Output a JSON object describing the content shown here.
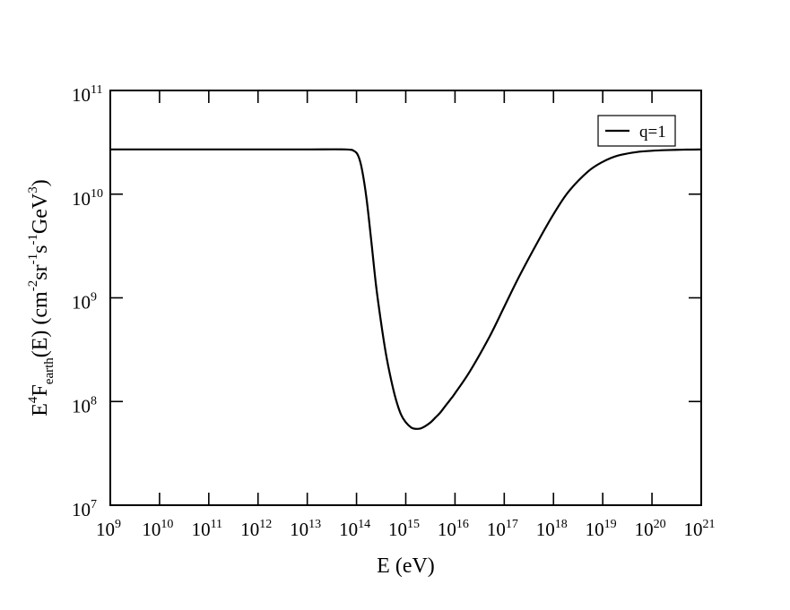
{
  "chart_data": {
    "type": "line",
    "xlabel": "E (eV)",
    "ylabel": {
      "parts": [
        "E",
        "4",
        "F",
        "earth",
        "(E) (cm",
        "-2",
        "sr",
        "-1",
        "s",
        "-1",
        "GeV",
        "3",
        ")"
      ]
    },
    "xscale": "log",
    "yscale": "log",
    "xlim": [
      1000000000.0,
      1e+21
    ],
    "ylim": [
      10000000.0,
      100000000000.0
    ],
    "x_ticks": [
      {
        "base": "10",
        "exp": "9"
      },
      {
        "base": "10",
        "exp": "10"
      },
      {
        "base": "10",
        "exp": "11"
      },
      {
        "base": "10",
        "exp": "12"
      },
      {
        "base": "10",
        "exp": "13"
      },
      {
        "base": "10",
        "exp": "14"
      },
      {
        "base": "10",
        "exp": "15"
      },
      {
        "base": "10",
        "exp": "16"
      },
      {
        "base": "10",
        "exp": "17"
      },
      {
        "base": "10",
        "exp": "18"
      },
      {
        "base": "10",
        "exp": "19"
      },
      {
        "base": "10",
        "exp": "20"
      },
      {
        "base": "10",
        "exp": "21"
      }
    ],
    "y_ticks": [
      {
        "base": "10",
        "exp": "7"
      },
      {
        "base": "10",
        "exp": "8"
      },
      {
        "base": "10",
        "exp": "9"
      },
      {
        "base": "10",
        "exp": "10"
      },
      {
        "base": "10",
        "exp": "11"
      }
    ],
    "legend": {
      "position": "top-right",
      "entries": [
        "q=1"
      ]
    },
    "grid": false,
    "series": [
      {
        "name": "q=1",
        "color": "#000000",
        "x": [
          1000000000.0,
          10000000000.0,
          100000000000.0,
          1000000000000.0,
          10000000000000.0,
          60000000000000.0,
          90000000000000.0,
          110000000000000.0,
          130000000000000.0,
          160000000000000.0,
          200000000000000.0,
          250000000000000.0,
          320000000000000.0,
          400000000000000.0,
          500000000000000.0,
          630000000000000.0,
          800000000000000.0,
          1000000000000000.0,
          1300000000000000.0,
          1600000000000000.0,
          2000000000000000.0,
          2500000000000000.0,
          3200000000000000.0,
          4000000000000000.0,
          5000000000000000.0,
          6300000000000000.0,
          8000000000000000.0,
          1e+16,
          2e+16,
          5e+16,
          1e+17,
          2e+17,
          5e+17,
          1e+18,
          2e+18,
          5e+18,
          1e+19,
          2e+19,
          5e+19,
          1e+20,
          2e+20,
          5e+20,
          1e+21
        ],
        "y": [
          27000000000.0,
          27000000000.0,
          27000000000.0,
          27000000000.0,
          27000000000.0,
          27000000000.0,
          26000000000.0,
          23000000000.0,
          17000000000.0,
          9000000000.0,
          3500000000.0,
          1300000000.0,
          550000000.0,
          280000000.0,
          165000000.0,
          105000000.0,
          75000000.0,
          63000000.0,
          56000000.0,
          54500000.0,
          55000000.0,
          58000000.0,
          63000000.0,
          70000000.0,
          78000000.0,
          90000000.0,
          104000000.0,
          120000000.0,
          195000000.0,
          420000000.0,
          820000000.0,
          1600000000.0,
          3600000000.0,
          6400000000.0,
          10500000000.0,
          16500000000.0,
          20500000000.0,
          23500000000.0,
          25500000000.0,
          26200000000.0,
          26600000000.0,
          26900000000.0,
          27000000000.0
        ]
      }
    ]
  }
}
